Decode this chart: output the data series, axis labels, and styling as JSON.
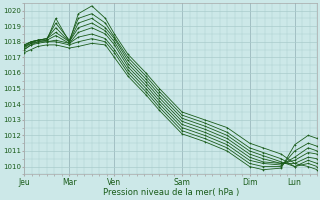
{
  "xlabel": "Pression niveau de la mer( hPa )",
  "bg_color": "#cce8e8",
  "grid_color": "#aacccc",
  "line_color": "#1a5c1a",
  "text_color": "#1a5c1a",
  "ylim": [
    1009.5,
    1020.5
  ],
  "xlim": [
    0.0,
    6.5
  ],
  "yticks": [
    1010,
    1011,
    1012,
    1013,
    1014,
    1015,
    1016,
    1017,
    1018,
    1019,
    1020
  ],
  "xtick_labels": [
    "Jeu",
    "Mar",
    "Ven",
    "Sam",
    "Dim",
    "Lun"
  ],
  "xtick_positions": [
    0.0,
    1.0,
    2.0,
    3.5,
    5.0,
    6.0
  ],
  "vlines": [
    0.0,
    1.0,
    2.0,
    3.5,
    5.0,
    6.0
  ],
  "series_x": [
    0.0,
    0.15,
    0.3,
    0.5,
    0.7,
    1.0,
    1.2,
    1.5,
    1.8,
    2.0,
    2.3,
    2.7,
    3.0,
    3.5,
    4.0,
    4.5,
    5.0,
    5.3,
    5.7,
    6.0,
    6.3,
    6.5
  ],
  "series": [
    [
      1017.5,
      1017.8,
      1018.0,
      1018.1,
      1019.5,
      1018.0,
      1019.8,
      1020.3,
      1019.5,
      1018.5,
      1017.2,
      1016.0,
      1015.0,
      1013.5,
      1013.0,
      1012.5,
      1011.5,
      1011.2,
      1010.8,
      1010.2,
      1010.0,
      1009.8
    ],
    [
      1017.6,
      1017.9,
      1018.1,
      1018.2,
      1019.2,
      1018.1,
      1019.5,
      1019.8,
      1019.2,
      1018.3,
      1017.0,
      1015.8,
      1014.8,
      1013.3,
      1012.8,
      1012.2,
      1011.2,
      1010.9,
      1010.5,
      1010.0,
      1010.2,
      1010.0
    ],
    [
      1017.7,
      1018.0,
      1018.1,
      1018.2,
      1018.9,
      1018.0,
      1019.2,
      1019.5,
      1018.9,
      1018.2,
      1016.8,
      1015.6,
      1014.6,
      1013.1,
      1012.6,
      1012.0,
      1011.0,
      1010.7,
      1010.3,
      1010.0,
      1010.4,
      1010.2
    ],
    [
      1017.8,
      1018.0,
      1018.1,
      1018.2,
      1018.6,
      1018.0,
      1018.9,
      1019.2,
      1018.7,
      1018.0,
      1016.6,
      1015.4,
      1014.4,
      1012.9,
      1012.4,
      1011.8,
      1010.8,
      1010.5,
      1010.2,
      1010.2,
      1010.6,
      1010.5
    ],
    [
      1017.8,
      1018.0,
      1018.1,
      1018.1,
      1018.4,
      1017.9,
      1018.6,
      1018.9,
      1018.5,
      1017.8,
      1016.4,
      1015.2,
      1014.2,
      1012.7,
      1012.2,
      1011.6,
      1010.6,
      1010.3,
      1010.2,
      1010.4,
      1010.9,
      1010.8
    ],
    [
      1017.7,
      1017.9,
      1018.0,
      1018.0,
      1018.1,
      1017.9,
      1018.3,
      1018.5,
      1018.2,
      1017.5,
      1016.2,
      1015.0,
      1014.0,
      1012.5,
      1012.0,
      1011.4,
      1010.4,
      1010.2,
      1010.1,
      1010.6,
      1011.2,
      1011.0
    ],
    [
      1017.5,
      1017.8,
      1017.9,
      1018.0,
      1018.0,
      1017.8,
      1018.0,
      1018.2,
      1018.0,
      1017.3,
      1016.0,
      1014.8,
      1013.8,
      1012.3,
      1011.8,
      1011.2,
      1010.2,
      1010.0,
      1010.0,
      1011.0,
      1011.5,
      1011.3
    ],
    [
      1017.3,
      1017.5,
      1017.7,
      1017.8,
      1017.8,
      1017.6,
      1017.7,
      1017.9,
      1017.8,
      1017.0,
      1015.8,
      1014.6,
      1013.6,
      1012.1,
      1011.6,
      1011.0,
      1010.0,
      1009.8,
      1009.9,
      1011.4,
      1012.0,
      1011.8
    ]
  ]
}
